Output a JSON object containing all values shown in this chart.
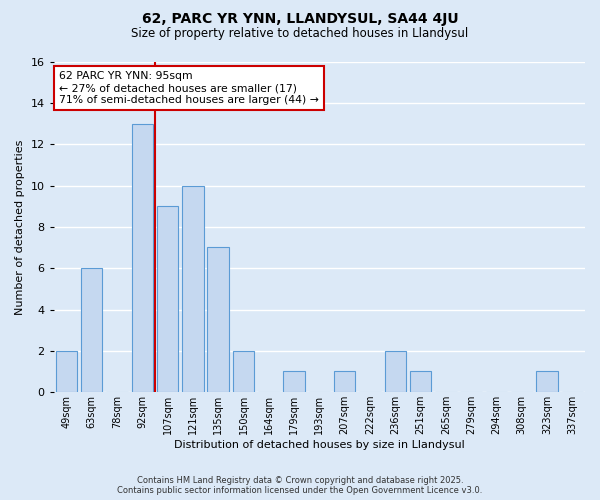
{
  "title": "62, PARC YR YNN, LLANDYSUL, SA44 4JU",
  "subtitle": "Size of property relative to detached houses in Llandysul",
  "xlabel": "Distribution of detached houses by size in Llandysul",
  "ylabel": "Number of detached properties",
  "bar_color": "#c5d8f0",
  "bar_edge_color": "#5b9bd5",
  "bg_color": "#dce9f7",
  "grid_color": "white",
  "categories": [
    "49sqm",
    "63sqm",
    "78sqm",
    "92sqm",
    "107sqm",
    "121sqm",
    "135sqm",
    "150sqm",
    "164sqm",
    "179sqm",
    "193sqm",
    "207sqm",
    "222sqm",
    "236sqm",
    "251sqm",
    "265sqm",
    "279sqm",
    "294sqm",
    "308sqm",
    "323sqm",
    "337sqm"
  ],
  "values": [
    2,
    6,
    0,
    13,
    9,
    10,
    7,
    2,
    0,
    1,
    0,
    1,
    0,
    2,
    1,
    0,
    0,
    0,
    0,
    1,
    0
  ],
  "ylim": [
    0,
    16
  ],
  "yticks": [
    0,
    2,
    4,
    6,
    8,
    10,
    12,
    14,
    16
  ],
  "property_line_idx": 3,
  "property_line_color": "#cc0000",
  "annotation_line1": "62 PARC YR YNN: 95sqm",
  "annotation_line2": "← 27% of detached houses are smaller (17)",
  "annotation_line3": "71% of semi-detached houses are larger (44) →",
  "annotation_box_color": "white",
  "annotation_box_edge": "#cc0000",
  "footer_line1": "Contains HM Land Registry data © Crown copyright and database right 2025.",
  "footer_line2": "Contains public sector information licensed under the Open Government Licence v3.0."
}
